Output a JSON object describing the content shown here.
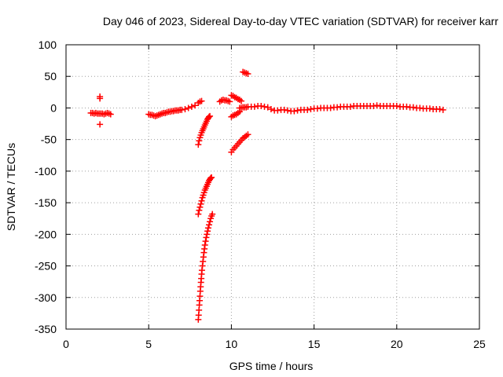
{
  "chart_data": {
    "type": "scatter",
    "title": "Day 046 of 2023, Sidereal Day-to-day VTEC variation (SDTVAR) for receiver karr",
    "xlabel": "GPS time / hours",
    "ylabel": "SDTVAR / TECUs",
    "xlim": [
      0,
      25
    ],
    "ylim": [
      -350,
      100
    ],
    "xticks": [
      "0",
      "5",
      "10",
      "15",
      "20",
      "25"
    ],
    "yticks": [
      "100",
      "50",
      "0",
      "-50",
      "-100",
      "-150",
      "-200",
      "-250",
      "-300",
      "-350"
    ],
    "grid": true,
    "marker": "+",
    "series_color": "#ff0000",
    "series": [
      {
        "name": "SDTVAR",
        "points": [
          [
            1.5,
            -8
          ],
          [
            1.6,
            -8
          ],
          [
            1.7,
            -9
          ],
          [
            1.8,
            -8
          ],
          [
            1.9,
            -9
          ],
          [
            2.0,
            -9
          ],
          [
            2.05,
            15
          ],
          [
            2.05,
            18
          ],
          [
            2.05,
            -26
          ],
          [
            2.1,
            -9
          ],
          [
            2.2,
            -9
          ],
          [
            2.3,
            -10
          ],
          [
            2.4,
            -9
          ],
          [
            2.5,
            -8
          ],
          [
            2.6,
            -9
          ],
          [
            2.7,
            -10
          ],
          [
            5.0,
            -10
          ],
          [
            5.1,
            -11
          ],
          [
            5.2,
            -11
          ],
          [
            5.3,
            -12
          ],
          [
            5.4,
            -13
          ],
          [
            5.5,
            -12
          ],
          [
            5.6,
            -11
          ],
          [
            5.7,
            -10
          ],
          [
            5.8,
            -9
          ],
          [
            5.9,
            -8
          ],
          [
            6.0,
            -8
          ],
          [
            6.1,
            -7
          ],
          [
            6.2,
            -6
          ],
          [
            6.3,
            -6
          ],
          [
            6.4,
            -5
          ],
          [
            6.5,
            -5
          ],
          [
            6.6,
            -4
          ],
          [
            6.7,
            -4
          ],
          [
            6.8,
            -4
          ],
          [
            6.9,
            -3
          ],
          [
            7.0,
            -3
          ],
          [
            7.2,
            -2
          ],
          [
            7.4,
            0
          ],
          [
            7.6,
            2
          ],
          [
            7.8,
            4
          ],
          [
            8.0,
            8
          ],
          [
            8.1,
            10
          ],
          [
            8.2,
            11
          ],
          [
            8.0,
            -58
          ],
          [
            8.05,
            -52
          ],
          [
            8.1,
            -47
          ],
          [
            8.15,
            -43
          ],
          [
            8.2,
            -39
          ],
          [
            8.25,
            -36
          ],
          [
            8.3,
            -33
          ],
          [
            8.35,
            -30
          ],
          [
            8.4,
            -27
          ],
          [
            8.45,
            -24
          ],
          [
            8.5,
            -21
          ],
          [
            8.55,
            -18
          ],
          [
            8.6,
            -16
          ],
          [
            8.65,
            -14
          ],
          [
            8.7,
            -13
          ],
          [
            8.0,
            -168
          ],
          [
            8.05,
            -162
          ],
          [
            8.1,
            -157
          ],
          [
            8.15,
            -152
          ],
          [
            8.2,
            -147
          ],
          [
            8.25,
            -142
          ],
          [
            8.3,
            -138
          ],
          [
            8.35,
            -134
          ],
          [
            8.4,
            -130
          ],
          [
            8.45,
            -127
          ],
          [
            8.5,
            -124
          ],
          [
            8.55,
            -121
          ],
          [
            8.6,
            -118
          ],
          [
            8.65,
            -115
          ],
          [
            8.7,
            -113
          ],
          [
            8.75,
            -111
          ],
          [
            8.8,
            -110
          ],
          [
            8.0,
            -335
          ],
          [
            8.02,
            -328
          ],
          [
            8.04,
            -320
          ],
          [
            8.06,
            -312
          ],
          [
            8.08,
            -305
          ],
          [
            8.1,
            -298
          ],
          [
            8.12,
            -290
          ],
          [
            8.14,
            -283
          ],
          [
            8.16,
            -276
          ],
          [
            8.18,
            -270
          ],
          [
            8.2,
            -263
          ],
          [
            8.22,
            -257
          ],
          [
            8.25,
            -250
          ],
          [
            8.28,
            -243
          ],
          [
            8.31,
            -236
          ],
          [
            8.34,
            -229
          ],
          [
            8.37,
            -223
          ],
          [
            8.4,
            -217
          ],
          [
            8.44,
            -211
          ],
          [
            8.48,
            -205
          ],
          [
            8.52,
            -200
          ],
          [
            8.56,
            -195
          ],
          [
            8.6,
            -190
          ],
          [
            8.65,
            -185
          ],
          [
            8.7,
            -180
          ],
          [
            8.75,
            -175
          ],
          [
            8.8,
            -171
          ],
          [
            8.85,
            -168
          ],
          [
            9.3,
            10
          ],
          [
            9.4,
            12
          ],
          [
            9.5,
            13
          ],
          [
            9.6,
            12
          ],
          [
            9.7,
            12
          ],
          [
            9.8,
            11
          ],
          [
            9.9,
            10
          ],
          [
            10.0,
            20
          ],
          [
            10.1,
            19
          ],
          [
            10.2,
            17
          ],
          [
            10.3,
            16
          ],
          [
            10.4,
            14
          ],
          [
            10.5,
            13
          ],
          [
            10.6,
            11
          ],
          [
            10.7,
            57
          ],
          [
            10.8,
            56
          ],
          [
            10.9,
            55
          ],
          [
            11.0,
            54
          ],
          [
            10.0,
            -70
          ],
          [
            10.1,
            -66
          ],
          [
            10.2,
            -63
          ],
          [
            10.3,
            -60
          ],
          [
            10.4,
            -57
          ],
          [
            10.5,
            -54
          ],
          [
            10.6,
            -51
          ],
          [
            10.7,
            -48
          ],
          [
            10.8,
            -46
          ],
          [
            10.9,
            -44
          ],
          [
            11.0,
            -42
          ],
          [
            10.0,
            -14
          ],
          [
            10.1,
            -12
          ],
          [
            10.2,
            -11
          ],
          [
            10.3,
            -10
          ],
          [
            10.4,
            -8
          ],
          [
            10.5,
            -6
          ],
          [
            10.5,
            0
          ],
          [
            10.6,
            0
          ],
          [
            10.7,
            1
          ],
          [
            10.8,
            1
          ],
          [
            10.9,
            1
          ],
          [
            11.0,
            2
          ],
          [
            11.2,
            2
          ],
          [
            11.4,
            2
          ],
          [
            11.6,
            3
          ],
          [
            11.8,
            3
          ],
          [
            12.0,
            2
          ],
          [
            12.2,
            1
          ],
          [
            12.4,
            -2
          ],
          [
            12.6,
            -4
          ],
          [
            12.8,
            -4
          ],
          [
            13.0,
            -3
          ],
          [
            13.2,
            -3
          ],
          [
            13.4,
            -4
          ],
          [
            13.6,
            -5
          ],
          [
            13.8,
            -5
          ],
          [
            14.0,
            -4
          ],
          [
            14.2,
            -3
          ],
          [
            14.4,
            -3
          ],
          [
            14.6,
            -3
          ],
          [
            14.8,
            -2
          ],
          [
            15.0,
            -1
          ],
          [
            15.2,
            -1
          ],
          [
            15.4,
            0
          ],
          [
            15.6,
            0
          ],
          [
            15.8,
            0
          ],
          [
            16.0,
            0
          ],
          [
            16.2,
            1
          ],
          [
            16.4,
            1
          ],
          [
            16.6,
            2
          ],
          [
            16.8,
            2
          ],
          [
            17.0,
            2
          ],
          [
            17.2,
            2
          ],
          [
            17.4,
            3
          ],
          [
            17.6,
            3
          ],
          [
            17.8,
            3
          ],
          [
            18.0,
            3
          ],
          [
            18.2,
            3
          ],
          [
            18.4,
            3
          ],
          [
            18.6,
            3
          ],
          [
            18.8,
            4
          ],
          [
            19.0,
            3
          ],
          [
            19.2,
            3
          ],
          [
            19.4,
            3
          ],
          [
            19.6,
            3
          ],
          [
            19.8,
            3
          ],
          [
            20.0,
            3
          ],
          [
            20.2,
            2
          ],
          [
            20.4,
            2
          ],
          [
            20.6,
            2
          ],
          [
            20.8,
            1
          ],
          [
            21.0,
            1
          ],
          [
            21.2,
            0
          ],
          [
            21.4,
            0
          ],
          [
            21.6,
            -1
          ],
          [
            21.8,
            -1
          ],
          [
            22.0,
            -1
          ],
          [
            22.2,
            -2
          ],
          [
            22.4,
            -2
          ],
          [
            22.6,
            -2
          ],
          [
            22.8,
            -3
          ]
        ]
      }
    ]
  }
}
